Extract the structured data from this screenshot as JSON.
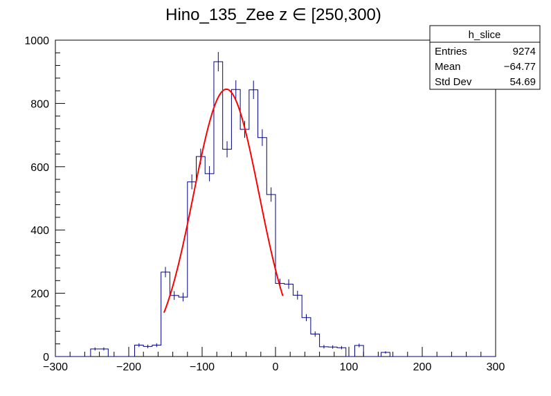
{
  "chart_data": {
    "type": "bar",
    "title": "Hino_135_Zee z  ∈ [250,300)",
    "xlabel": "",
    "ylabel": "",
    "xlim": [
      -300,
      300
    ],
    "ylim": [
      0,
      1000
    ],
    "x_ticks": [
      -300,
      -200,
      -100,
      0,
      100,
      200,
      300
    ],
    "y_ticks": [
      0,
      200,
      400,
      600,
      800,
      1000
    ],
    "x_tick_labels": [
      "−300",
      "−200",
      "−100",
      "0",
      "100",
      "200",
      "300"
    ],
    "y_tick_labels": [
      "0",
      "200",
      "400",
      "600",
      "800",
      "1000"
    ],
    "grid": false,
    "legend": "none",
    "bin_width": 12,
    "bin_low_edges": [
      -252,
      -240,
      -228,
      -216,
      -204,
      -192,
      -180,
      -168,
      -156,
      -144,
      -132,
      -120,
      -108,
      -96,
      -84,
      -72,
      -60,
      -48,
      -36,
      -24,
      -12,
      0,
      12,
      24,
      36,
      48,
      60,
      72,
      84,
      96,
      108,
      120,
      132,
      144,
      156
    ],
    "counts": [
      24,
      24,
      0,
      0,
      0,
      36,
      32,
      36,
      267,
      193,
      188,
      552,
      632,
      578,
      932,
      655,
      844,
      718,
      843,
      692,
      512,
      231,
      229,
      194,
      123,
      71,
      31,
      30,
      28,
      0,
      35,
      0,
      0,
      13,
      0
    ],
    "fit": {
      "function": "gaussian",
      "color": "#ff0000",
      "amplitude": 845,
      "mean": -67,
      "sigma": 44.7,
      "x_range": [
        -152,
        10
      ]
    },
    "stats_box": {
      "title": "h_slice",
      "rows": [
        {
          "label": "Entries",
          "value": "9274"
        },
        {
          "label": "Mean",
          "value": "−64.77"
        },
        {
          "label": "Std Dev",
          "value": "54.69"
        }
      ]
    },
    "colors": {
      "histogram": "#000080",
      "fit": "#ff0000",
      "axis": "#000000"
    }
  }
}
